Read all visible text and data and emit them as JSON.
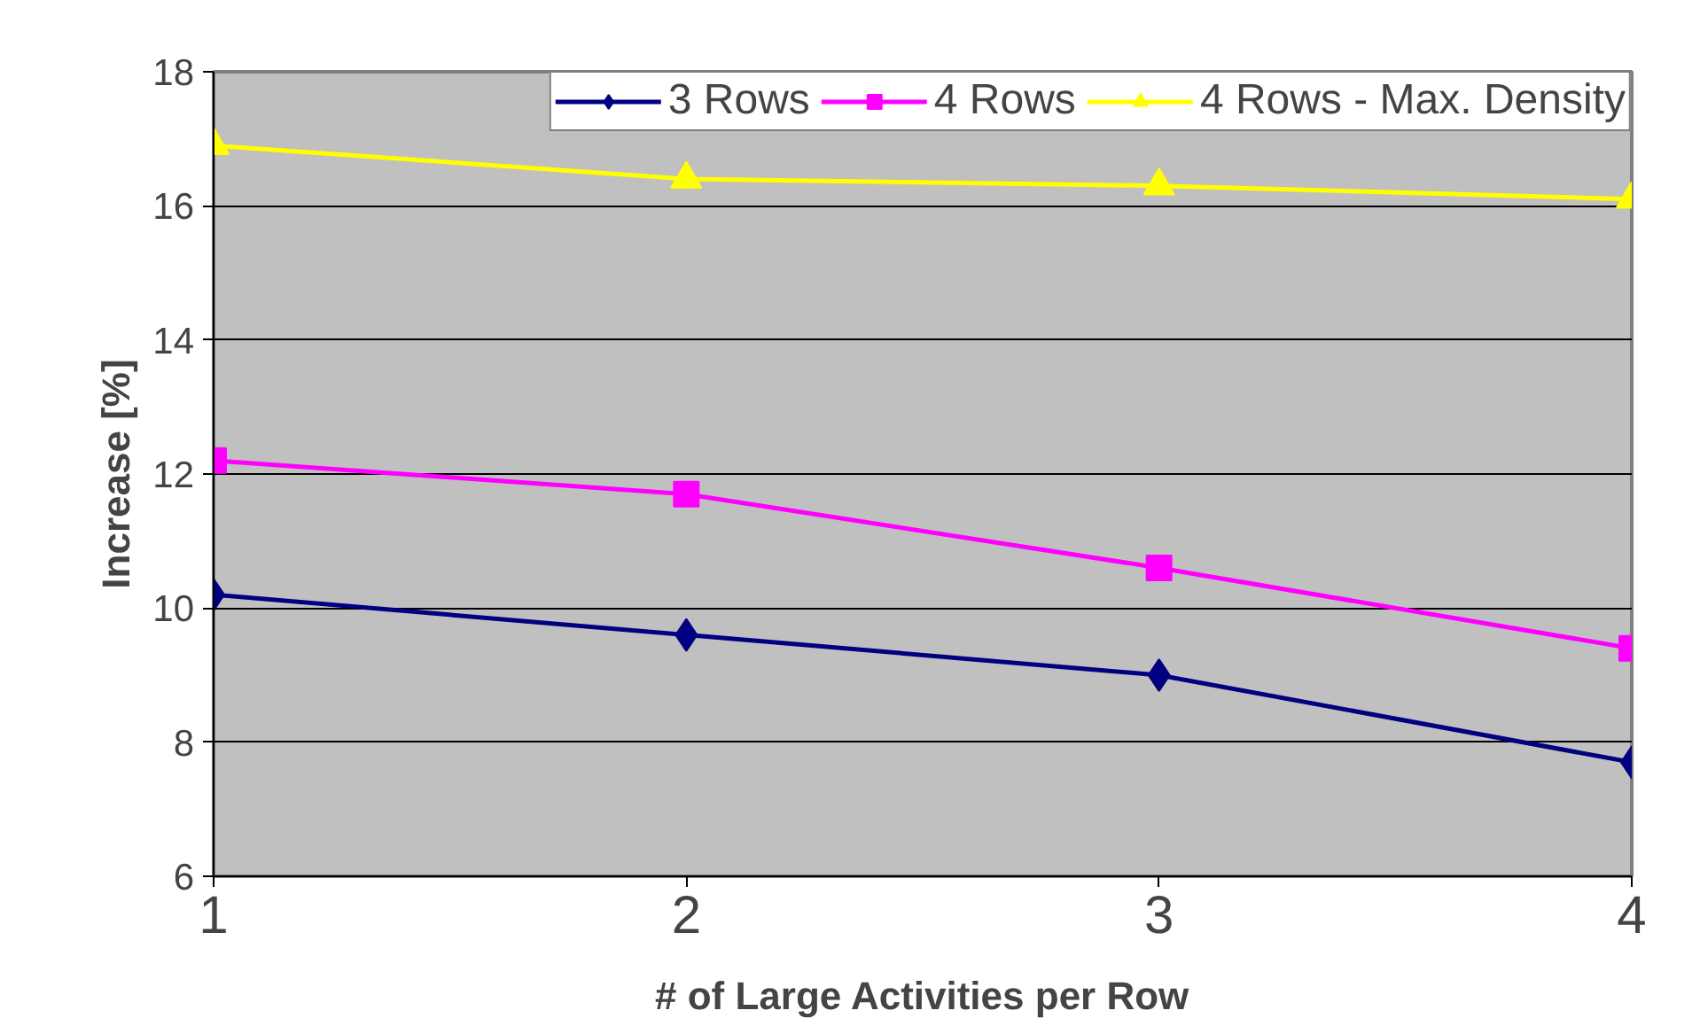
{
  "chart_data": {
    "type": "line",
    "xlabel": "# of Large Activities per Row",
    "ylabel": "Increase [%]",
    "x": [
      1,
      2,
      3,
      4
    ],
    "xlim": [
      1,
      4
    ],
    "xticks": [
      1,
      2,
      3,
      4
    ],
    "ylim": [
      6,
      18
    ],
    "yticks": [
      6,
      8,
      10,
      12,
      14,
      16,
      18
    ],
    "grid": "y",
    "legend": "top right",
    "line_style": "solid",
    "series": [
      {
        "name": "3 Rows",
        "color": "#000080",
        "marker": "diamond",
        "values": [
          10.2,
          9.6,
          9.0,
          7.7
        ]
      },
      {
        "name": "4 Rows",
        "color": "#ff00ff",
        "marker": "square",
        "values": [
          12.2,
          11.7,
          10.6,
          9.4
        ]
      },
      {
        "name": "4 Rows - Max. Density",
        "color": "#ffff00",
        "marker": "triangle",
        "values": [
          16.9,
          16.4,
          16.3,
          16.1
        ]
      }
    ]
  }
}
